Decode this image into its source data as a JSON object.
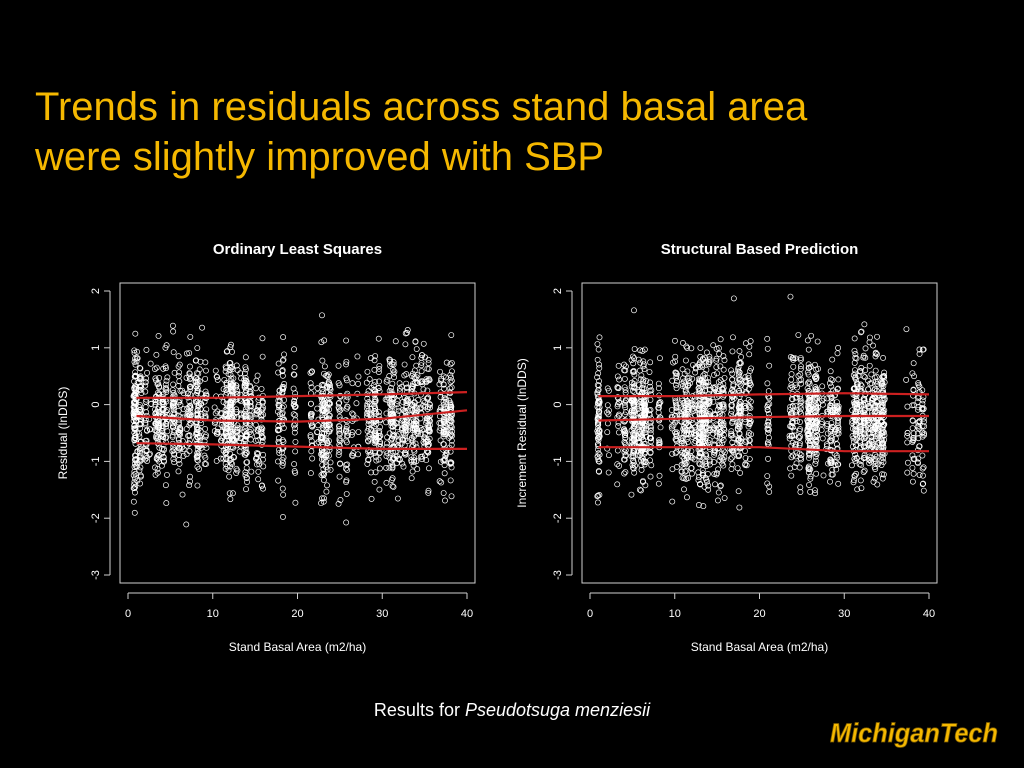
{
  "slide": {
    "title_line1": "Trends in residuals across stand basal area",
    "title_line2": "were slightly improved with SBP",
    "caption_prefix": "Results for",
    "caption_species": "Pseudotsuga menziesii",
    "logo_text": "MichiganTech",
    "colors": {
      "title": "#f5b800",
      "trend_lines": "#cc2020",
      "points": "#ffffff",
      "background": "#000000",
      "logo_gold": "#f5b800"
    }
  },
  "chart_data": [
    {
      "type": "scatter",
      "title": "Ordinary Least Squares",
      "xlabel": "Stand Basal Area (m2/ha)",
      "ylabel": "Residual (lnDDS)",
      "xlim": [
        0,
        40
      ],
      "ylim": [
        -3,
        2
      ],
      "xticks": [
        "0",
        "10",
        "20",
        "30",
        "40"
      ],
      "yticks": [
        "-3",
        "-2",
        "-1",
        "0",
        "1",
        "2"
      ],
      "grid": false,
      "points_description": "dense vertical columns of residuals per stand, mostly between -2 and 1",
      "trend_lines": [
        {
          "name": "upper",
          "x": [
            1,
            10,
            20,
            30,
            40
          ],
          "y": [
            0.12,
            0.12,
            0.15,
            0.18,
            0.22
          ]
        },
        {
          "name": "middle",
          "x": [
            1,
            10,
            20,
            30,
            40
          ],
          "y": [
            -0.2,
            -0.28,
            -0.3,
            -0.25,
            -0.1
          ]
        },
        {
          "name": "lower",
          "x": [
            1,
            10,
            20,
            30,
            40
          ],
          "y": [
            -0.68,
            -0.7,
            -0.74,
            -0.78,
            -0.78
          ]
        }
      ]
    },
    {
      "type": "scatter",
      "title": "Structural Based Prediction",
      "xlabel": "Stand Basal Area (m2/ha)",
      "ylabel": "Increment Residual (lnDDS)",
      "xlim": [
        0,
        40
      ],
      "ylim": [
        -3,
        2
      ],
      "xticks": [
        "0",
        "10",
        "20",
        "30",
        "40"
      ],
      "yticks": [
        "-3",
        "-2",
        "-1",
        "0",
        "1",
        "2"
      ],
      "grid": false,
      "points_description": "dense vertical columns of residuals per stand, mostly between -2 and 1",
      "trend_lines": [
        {
          "name": "upper",
          "x": [
            1,
            10,
            20,
            30,
            40
          ],
          "y": [
            0.15,
            0.15,
            0.18,
            0.2,
            0.18
          ]
        },
        {
          "name": "middle",
          "x": [
            1,
            10,
            20,
            30,
            40
          ],
          "y": [
            -0.28,
            -0.25,
            -0.22,
            -0.2,
            -0.2
          ]
        },
        {
          "name": "lower",
          "x": [
            1,
            10,
            20,
            30,
            40
          ],
          "y": [
            -0.75,
            -0.75,
            -0.75,
            -0.82,
            -0.82
          ]
        }
      ]
    }
  ]
}
